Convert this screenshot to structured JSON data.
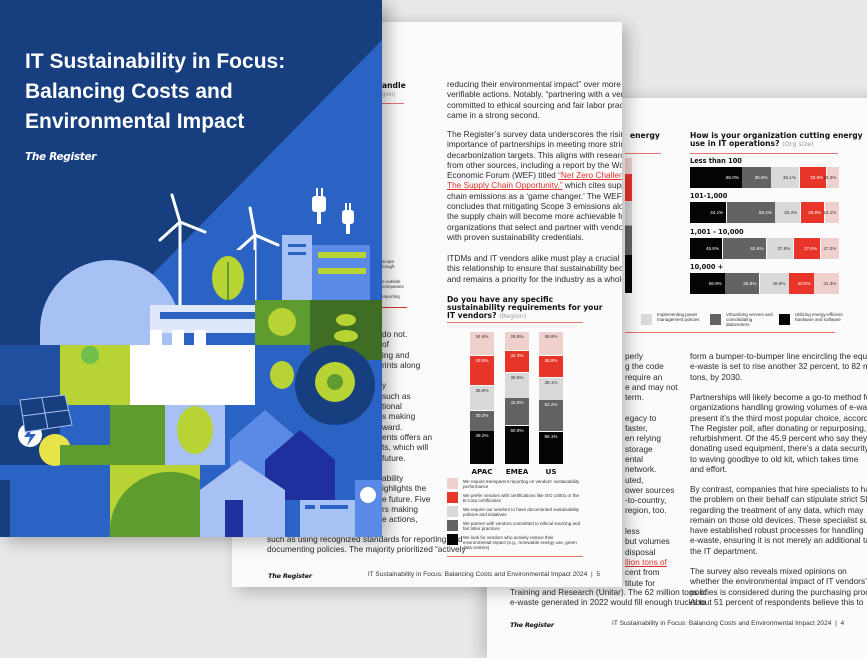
{
  "cover": {
    "title_lines": [
      "IT Sustainability in Focus:",
      "Balancing Costs and",
      "Environmental Impact"
    ],
    "brand": "The Register",
    "colors": {
      "navy": "#173f80",
      "blue": "#2b63c4",
      "lime": "#b7d334",
      "green": "#5f9c2f"
    }
  },
  "middle_page": {
    "partial_chart": {
      "title_fragment": "andle",
      "subtitle_fragment": "gion)",
      "legend_fragments": [
        "scope",
        "nough",
        "e-outside",
        "companies",
        "reporting"
      ]
    },
    "left_column_fragments": [
      "do not.",
      "of",
      "ing and",
      "rints along",
      "",
      "y",
      "such as",
      "tional",
      "s making",
      "ward.",
      "ents offers an",
      "ts, which will",
      "future.",
      "",
      "ability",
      "ighlights the",
      "e future. Five",
      "rs making",
      "e actions,"
    ],
    "left_column_bottom": [
      "such as using recognized standards for reporting and",
      "documenting policies. The majority prioritized “actively"
    ],
    "right_column": {
      "p1": [
        "reducing their environmental impact” over more easily",
        "verifiable actions. Notably, “partnering with a vendor",
        "committed to ethical sourcing and fair labor practices”",
        "came in a strong second."
      ],
      "p2": [
        "The Register’s survey data underscores the rising",
        "importance of partnerships in meeting more stringent",
        "decarbonization targets. This aligns with research",
        "from other sources, including a report by the World",
        {
          "pre": "Economic Forum (WEF) titled ",
          "link": "“Net Zero Challenge:",
          "post": ""
        },
        {
          "pre": "",
          "link": "The Supply Chain Opportunity,”",
          "post": " which cites supply"
        },
        "chain emissions as a ‘game changer.’ The WEF",
        "concludes that mitigating Scope 3 emissions along",
        "the supply chain will become more achievable for",
        "organizations that select and partner with vendors",
        "with proven sustainability credentials."
      ],
      "p3": [
        "ITDMs and IT vendors alike must play a crucial role in",
        "this relationship to ensure that sustainability becomes",
        "and remains a priority for the industry as a whole."
      ]
    },
    "chart_question": {
      "lines": [
        "Do you have any specific",
        "sustainability requirements for your"
      ],
      "last_line": "IT vendors?",
      "qualifier": "(Region)"
    },
    "footer": {
      "brand": "The Register",
      "title": "IT Sustainability in Focus: Balancing Costs and Environmental Impact 2024",
      "separator": "|",
      "page_number": "5"
    }
  },
  "back_page": {
    "partial_chart_title": "energy",
    "chart_question": {
      "lines": [
        "How is your organization cutting energy"
      ],
      "last_line": "use in IT operations?",
      "qualifier": "(Org size)"
    },
    "left_column_fragments": [
      "perly",
      "g the code",
      "require an",
      "e and may not",
      "term.",
      "",
      "egacy to",
      "faster,",
      "en relying",
      "storage",
      "ental",
      "network.",
      "uted,",
      "ower sources",
      "-to-country,",
      "region, too.",
      "",
      "less",
      "but volumes",
      "disposal",
      {
        "pre": "",
        "link": "llion tons of",
        "post": ""
      },
      "cent from",
      "titute for"
    ],
    "left_column_bottom": [
      "Training and Research (Unitar). The 62 million tons of",
      "e-waste generated in 2022 would fill enough trucks to"
    ],
    "right_column": {
      "p1": [
        "form a bumper-to-bumper line encircling the equator,",
        "e-waste is set to rise another 32 percent, to 82 million",
        "tons, by 2030."
      ],
      "p2": [
        "Partnerships will likely become a go-to method for",
        "organizations handling growing volumes of e-waste. At",
        "present it’s the third most popular choice, according to",
        "The Register poll, after donating or repurposing, and",
        "refurbishment. Of the 45.9 percent who say they’re",
        "donating used equipment, there’s a data security aspect",
        "to waving goodbye to old kit, which takes time",
        "and effort."
      ],
      "p3": [
        "By contrast, companies that hire specialists to handle",
        "the problem on their behalf can stipulate strict SLAs",
        "regarding the treatment of any data, which may",
        "remain on those old devices. These specialist suppliers",
        "have established robust processes for handling",
        "e-waste, ensuring it is not merely an additional task for",
        "the IT department."
      ],
      "p4": [
        "The survey also reveals mixed opinions on",
        "whether the environmental impact of IT vendors’",
        "policies is considered during the purchasing process.",
        "About 51 percent of respondents believe this to"
      ]
    },
    "footer": {
      "brand": "The Register",
      "title": "IT Sustainability in Focus: Balancing Costs and Environmental Impact 2024",
      "separator": "|",
      "page_number": "4"
    }
  },
  "chart_data": [
    {
      "type": "bar",
      "stacked": true,
      "orientation": "vertical",
      "title": "Do you have any specific sustainability requirements for your IT vendors? (Region)",
      "categories": [
        "APAC",
        "EMEA",
        "US"
      ],
      "series": [
        {
          "name": "We require transparent reporting on vendors' sustainability performance",
          "color": "#f0d0cd",
          "values": [
            34.6,
            28.9,
            39.6
          ]
        },
        {
          "name": "We prefer vendors with certifications like ISO 14001 or the B Corp certification",
          "color": "#e8352a",
          "values": [
            43.9,
            34.3,
            36.8
          ]
        },
        {
          "name": "We require our vendors to have documented sustainability policies and initiatives",
          "color": "#d9d9d9",
          "values": [
            36.9,
            39.5,
            38.1
          ]
        },
        {
          "name": "We partner with vendors committed to ethical sourcing and fair labor practices",
          "color": "#636363",
          "values": [
            30.2,
            42.6,
            52.2
          ]
        },
        {
          "name": "We look for vendors who actively reduce their environmental impact (e.g., renewable energy use, green data centers)",
          "color": "#050505",
          "values": [
            49.2,
            60.9,
            56.1
          ]
        }
      ],
      "unit": "%",
      "legend": "bottom"
    },
    {
      "type": "bar",
      "stacked": true,
      "orientation": "horizontal",
      "title": "How is your organization cutting energy use in IT operations? (Org size)",
      "categories": [
        "Less than 100",
        "101-1,000",
        "1,001 - 10,000",
        "10,000 +"
      ],
      "series": [
        {
          "name": "Utilizing energy-efficient hardware and software",
          "color": "#050505",
          "values": [
            65.0,
            44.1,
            45.8,
            56.9
          ]
        },
        {
          "name": "Virtualizing servers and consolidating datacenters",
          "color": "#636363",
          "values": [
            35.6,
            58.2,
            62.6,
            55.8
          ]
        },
        {
          "name": "Implementing power management policies",
          "color": "#d9d9d9",
          "values": [
            35.1,
            30.3,
            37.9,
            46.8
          ]
        },
        {
          "color": "#e8352a",
          "values": [
            33.8,
            28.8,
            37.6,
            40.5
          ]
        },
        {
          "color": "#f0d0cd",
          "values": [
            16.3,
            18.1,
            27.2,
            41.3
          ]
        }
      ],
      "unit": "%",
      "legend": "bottom"
    }
  ]
}
